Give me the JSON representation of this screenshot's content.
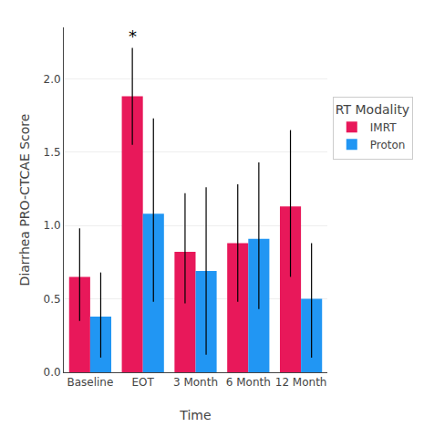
{
  "chart_data": {
    "type": "bar",
    "xlabel": "Time",
    "ylabel": "Diarrhea PRO-CTCAE Score",
    "categories": [
      "Baseline",
      "EOT",
      "3 Month",
      "6 Month",
      "12 Month"
    ],
    "series": [
      {
        "name": "IMRT",
        "color": "#E8185A",
        "values": [
          0.65,
          1.88,
          0.82,
          0.88,
          1.13
        ],
        "errors_low": [
          0.3,
          0.33,
          0.35,
          0.4,
          0.48
        ],
        "errors_high": [
          0.33,
          0.33,
          0.4,
          0.4,
          0.52
        ]
      },
      {
        "name": "Proton",
        "color": "#2196F3",
        "values": [
          0.38,
          1.08,
          0.69,
          0.91,
          0.5
        ],
        "errors_low": [
          0.28,
          0.6,
          0.57,
          0.48,
          0.4
        ],
        "errors_high": [
          0.3,
          0.65,
          0.57,
          0.52,
          0.38
        ]
      }
    ],
    "ylim": [
      0,
      2.35
    ],
    "yticks": [
      {
        "value": 0.0,
        "label": "0.0"
      },
      0.5,
      {
        "value": 1.0,
        "label": "1.0"
      },
      1.5,
      {
        "value": 2.0,
        "label": "2.0"
      }
    ],
    "grid": true,
    "legend": "right",
    "legend_title": "RT Modality",
    "annotations": [
      {
        "text": "*",
        "category": "EOT",
        "series": "IMRT"
      }
    ]
  }
}
